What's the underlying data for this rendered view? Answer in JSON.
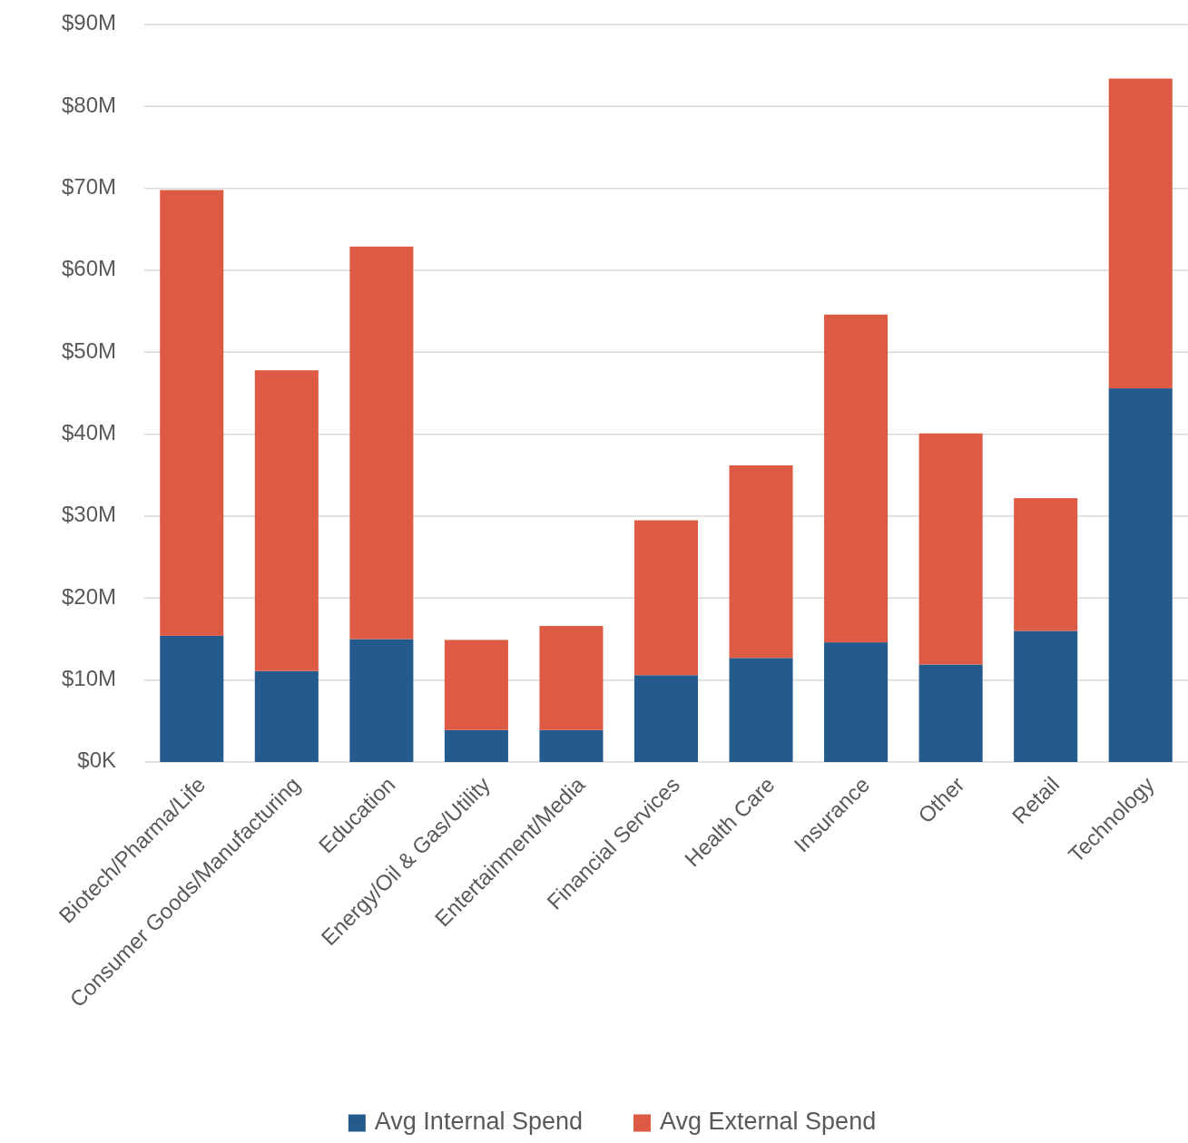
{
  "chart_data": {
    "type": "bar",
    "stacked": true,
    "categories": [
      "Biotech/Pharma/Life",
      "Consumer Goods/Manufacturing",
      "Education",
      "Energy/Oil & Gas/Utility",
      "Entertainment/Media",
      "Financial Services",
      "Health Care",
      "Insurance",
      "Other",
      "Retail",
      "Technology"
    ],
    "series": [
      {
        "name": "Avg Internal Spend",
        "color": "#255a8c",
        "values": [
          15.4,
          11.1,
          15.0,
          3.9,
          3.9,
          10.6,
          12.7,
          14.6,
          11.9,
          16.0,
          45.6
        ]
      },
      {
        "name": "Avg External Spend",
        "color": "#dd5b45",
        "values": [
          54.4,
          36.7,
          47.9,
          11.0,
          12.7,
          18.9,
          23.5,
          40.0,
          28.2,
          16.2,
          37.8
        ]
      }
    ],
    "ylim": [
      0,
      90
    ],
    "yticks": [
      {
        "value": 0,
        "label": "$0K"
      },
      {
        "value": 10,
        "label": "$10M"
      },
      {
        "value": 20,
        "label": "$20M"
      },
      {
        "value": 30,
        "label": "$30M"
      },
      {
        "value": 40,
        "label": "$40M"
      },
      {
        "value": 50,
        "label": "$50M"
      },
      {
        "value": 60,
        "label": "$60M"
      },
      {
        "value": 70,
        "label": "$70M"
      },
      {
        "value": 80,
        "label": "$80M"
      },
      {
        "value": 90,
        "label": "$90M"
      }
    ],
    "grid": "y",
    "legend": "bottom"
  }
}
